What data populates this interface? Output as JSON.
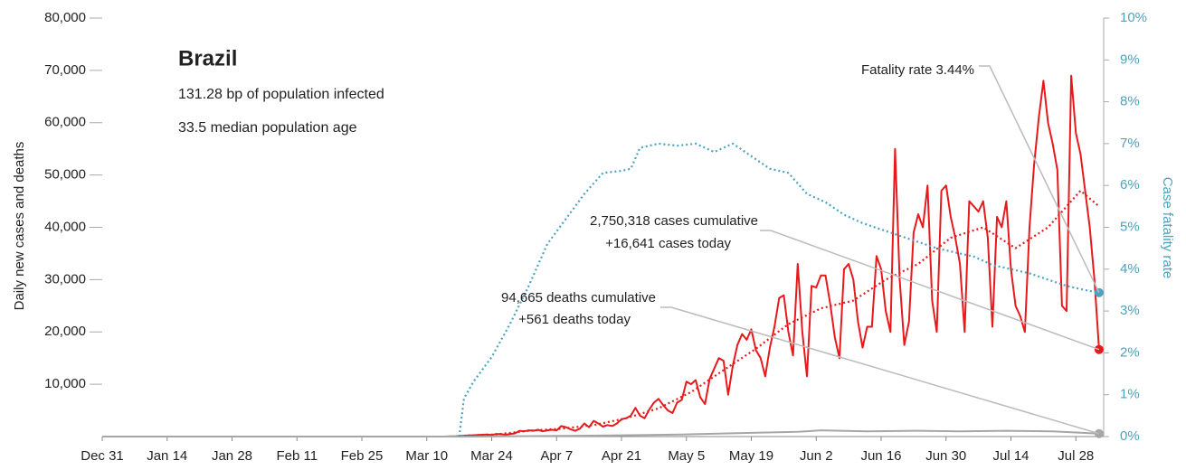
{
  "chart_data": {
    "type": "line",
    "title": "Brazil",
    "subtitles": [
      "131.28 bp of population infected",
      "33.5 median population age"
    ],
    "ylabel": "Daily new cases and deaths",
    "y2label": "Case fatality rate",
    "xlim": [
      0,
      216
    ],
    "xticks": [
      {
        "value": 0,
        "label": "Dec 31"
      },
      {
        "value": 14,
        "label": "Jan 14"
      },
      {
        "value": 28,
        "label": "Jan 28"
      },
      {
        "value": 42,
        "label": "Feb 11"
      },
      {
        "value": 56,
        "label": "Feb 25"
      },
      {
        "value": 70,
        "label": "Mar 10"
      },
      {
        "value": 84,
        "label": "Mar 24"
      },
      {
        "value": 98,
        "label": "Apr 7"
      },
      {
        "value": 112,
        "label": "Apr 21"
      },
      {
        "value": 126,
        "label": "May 5"
      },
      {
        "value": 140,
        "label": "May 19"
      },
      {
        "value": 154,
        "label": "Jun 2"
      },
      {
        "value": 168,
        "label": "Jun 16"
      },
      {
        "value": 182,
        "label": "Jun 30"
      },
      {
        "value": 196,
        "label": "Jul 14"
      },
      {
        "value": 210,
        "label": "Jul 28"
      }
    ],
    "ylim": [
      0,
      80000
    ],
    "yticks": [
      {
        "value": 10000,
        "label": "10,000"
      },
      {
        "value": 20000,
        "label": "20,000"
      },
      {
        "value": 30000,
        "label": "30,000"
      },
      {
        "value": 40000,
        "label": "40,000"
      },
      {
        "value": 50000,
        "label": "50,000"
      },
      {
        "value": 60000,
        "label": "60,000"
      },
      {
        "value": 70000,
        "label": "70,000"
      },
      {
        "value": 80000,
        "label": "80,000"
      }
    ],
    "y2lim": [
      0,
      10
    ],
    "y2ticks": [
      {
        "value": 0,
        "label": "0%"
      },
      {
        "value": 1,
        "label": "1%"
      },
      {
        "value": 2,
        "label": "2%"
      },
      {
        "value": 3,
        "label": "3%"
      },
      {
        "value": 4,
        "label": "4%"
      },
      {
        "value": 5,
        "label": "5%"
      },
      {
        "value": 6,
        "label": "6%"
      },
      {
        "value": 7,
        "label": "7%"
      },
      {
        "value": 8,
        "label": "8%"
      },
      {
        "value": 9,
        "label": "9%"
      },
      {
        "value": 10,
        "label": "10%"
      }
    ],
    "series": [
      {
        "color": "#e8191c",
        "dotted": false,
        "end_marker": true,
        "x": [
          0,
          74,
          75,
          76,
          77,
          78,
          79,
          80,
          81,
          82,
          83,
          84,
          85,
          86,
          87,
          88,
          89,
          90,
          91,
          92,
          93,
          94,
          95,
          96,
          97,
          98,
          99,
          100,
          101,
          102,
          103,
          104,
          105,
          106,
          107,
          108,
          109,
          110,
          111,
          112,
          113,
          114,
          115,
          116,
          117,
          118,
          119,
          120,
          121,
          122,
          123,
          124,
          125,
          126,
          127,
          128,
          129,
          130,
          131,
          132,
          133,
          134,
          135,
          136,
          137,
          138,
          139,
          140,
          141,
          142,
          143,
          144,
          145,
          146,
          147,
          148,
          149,
          150,
          151,
          152,
          153,
          154,
          155,
          156,
          157,
          158,
          159,
          160,
          161,
          162,
          163,
          164,
          165,
          166,
          167,
          168,
          169,
          170,
          171,
          172,
          173,
          174,
          175,
          176,
          177,
          178,
          179,
          180,
          181,
          182,
          183,
          184,
          185,
          186,
          187,
          188,
          189,
          190,
          191,
          192,
          193,
          194,
          195,
          196,
          197,
          198,
          199,
          200,
          201,
          202,
          203,
          204,
          205,
          206,
          207,
          208,
          209,
          210,
          211,
          212,
          213,
          214,
          215
        ],
        "values": [
          0,
          0,
          30,
          50,
          100,
          150,
          200,
          250,
          300,
          350,
          400,
          300,
          500,
          450,
          350,
          500,
          600,
          1100,
          1000,
          1200,
          1100,
          1300,
          1000,
          1200,
          1300,
          1200,
          2000,
          1800,
          1400,
          1100,
          1500,
          2500,
          1800,
          3000,
          2500,
          1900,
          2200,
          2000,
          2500,
          3300,
          3500,
          4000,
          5500,
          4000,
          3500,
          5200,
          6500,
          7200,
          6000,
          5000,
          4500,
          6500,
          7000,
          10500,
          10000,
          10800,
          7500,
          6200,
          11000,
          13000,
          15000,
          14500,
          8000,
          13500,
          17500,
          19600,
          18500,
          20500,
          16500,
          15000,
          11500,
          17000,
          21000,
          26500,
          27000,
          20000,
          15500,
          33000,
          20000,
          11500,
          28800,
          28500,
          30800,
          30800,
          25500,
          19000,
          15000,
          32000,
          33000,
          30000,
          22000,
          17000,
          21000,
          21000,
          34500,
          32000,
          24000,
          20000,
          55000,
          30000,
          17500,
          22000,
          39000,
          42500,
          40000,
          48000,
          26000,
          20000,
          47000,
          48000,
          42000,
          38000,
          33000,
          20000,
          45000,
          44000,
          43000,
          45000,
          38000,
          21000,
          42000,
          40000,
          45000,
          32000,
          25000,
          23000,
          20000,
          40000,
          52000,
          61000,
          68000,
          60000,
          56000,
          51000,
          25000,
          24000,
          69000,
          58000,
          54000,
          47000,
          40000,
          30000,
          16641
        ]
      },
      {
        "color": "#e8191c",
        "dotted": true,
        "end_marker": false,
        "x": [
          78,
          85,
          92,
          99,
          106,
          113,
          120,
          127,
          134,
          141,
          148,
          155,
          162,
          169,
          176,
          183,
          190,
          197,
          204,
          211,
          215
        ],
        "values": [
          150,
          420,
          1100,
          1500,
          2200,
          3500,
          5400,
          8500,
          12700,
          16800,
          21500,
          24500,
          26000,
          30000,
          33000,
          38000,
          40000,
          36000,
          40000,
          47000,
          44000
        ]
      },
      {
        "color": "#a6a6a6",
        "dotted": false,
        "end_marker": true,
        "x": [
          0,
          80,
          95,
          110,
          125,
          140,
          150,
          155,
          165,
          175,
          185,
          195,
          205,
          215
        ],
        "values": [
          0,
          0,
          100,
          200,
          400,
          700,
          900,
          1200,
          1000,
          1100,
          1000,
          1100,
          1000,
          561
        ]
      },
      {
        "color": "#4aa3c0",
        "dotted": true,
        "end_marker": true,
        "axis": "y2",
        "x": [
          77,
          78,
          80,
          84,
          88,
          92,
          96,
          100,
          104,
          108,
          112,
          114,
          116,
          120,
          124,
          128,
          132,
          136,
          140,
          144,
          148,
          152,
          156,
          160,
          164,
          168,
          172,
          176,
          180,
          184,
          188,
          192,
          196,
          200,
          204,
          208,
          212,
          215
        ],
        "values": [
          0,
          0.9,
          1.3,
          1.9,
          2.7,
          3.6,
          4.6,
          5.2,
          5.8,
          6.3,
          6.35,
          6.4,
          6.9,
          7.0,
          6.95,
          7.0,
          6.8,
          7.0,
          6.7,
          6.4,
          6.3,
          5.8,
          5.6,
          5.3,
          5.1,
          4.95,
          4.8,
          4.65,
          4.5,
          4.4,
          4.3,
          4.1,
          4.0,
          3.9,
          3.75,
          3.6,
          3.5,
          3.44
        ]
      }
    ],
    "annotations": [
      "Fatality rate 3.44%",
      "2,750,318 cases cumulative",
      "+16,641 cases today",
      "94,665 deaths cumulative",
      "+561 deaths today"
    ],
    "y2color": "#4aa3c0"
  }
}
